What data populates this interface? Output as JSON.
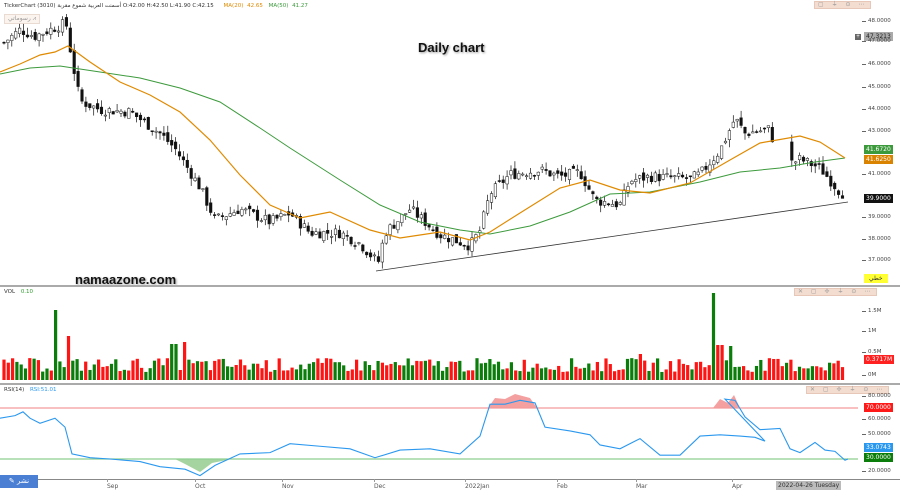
{
  "header": {
    "app": "TickerChart",
    "symbol_name": "أسمنت العربية شموع مقربة",
    "symbol_code": "(3010)",
    "ohlc": "O:42.00  H:42.50  L:41.90  C:42.15",
    "ma20_label": "MA(20)",
    "ma20_value": "42.65",
    "ma50_label": "MA(50)",
    "ma50_value": "41.27",
    "lang_button": "رسوماتي ⩘"
  },
  "overlay": {
    "title": "Daily chart",
    "watermark": "namaazone.com"
  },
  "price_axis": {
    "ticks": [
      "48.0000",
      "47.0000",
      "46.0000",
      "45.0000",
      "44.0000",
      "43.0000",
      "41.0000",
      "39.0000",
      "38.0000",
      "37.0000"
    ],
    "tags": {
      "last_high": "47.3213",
      "ma50": "41.6720",
      "ma20": "41.6250",
      "close": "39.9000",
      "trend_label": "خطي"
    }
  },
  "volume": {
    "label": "VOL",
    "value": "0.10",
    "ticks": [
      "1.5M",
      "1M",
      "0.5M",
      "0M"
    ],
    "current": "0.3717M"
  },
  "rsi": {
    "label": "RSI(14)",
    "value": "RSI:51.01",
    "ticks": [
      "80.0000",
      "60.0000",
      "50.0000",
      "20.0000"
    ],
    "overbought": "70.0000",
    "oversold": "30.0000",
    "current": "33.0743"
  },
  "x_axis": {
    "labels": [
      "Sep",
      "Oct",
      "Nov",
      "Dec",
      "2022Jan",
      "Feb",
      "Mar",
      "Apr"
    ],
    "cursor_date": "2022-04-26 Tuesday",
    "edit_button": "✎ نشر"
  },
  "panel_tools": {
    "main": "▢ ⏚ ⊙ ⋯",
    "sub": "✕ ▢ ✢ ⏚ ⊙ ⋯"
  },
  "colors": {
    "ma20": "#e08a00",
    "ma50": "#3c9a3c",
    "up": "#0a7d0a",
    "down": "#ff1414",
    "rsi": "#2b98ef",
    "ob": "#f08080",
    "os": "#7cc47c"
  },
  "chart_data": [
    {
      "type": "candlestick",
      "title": "Daily chart",
      "series": [
        {
          "name": "MA(20)",
          "values_approx": [
            46.2,
            46.6,
            46.9,
            46.4,
            45.6,
            44.5,
            43.3,
            42.2,
            41.4,
            40.3,
            39.4,
            39.1,
            39.1,
            39.2,
            39.0,
            38.6,
            38.2,
            38.0,
            38.0,
            38.0,
            38.1,
            38.2,
            39.4,
            40.0,
            40.0,
            40.1,
            40.5,
            41.0,
            41.9,
            42.7,
            42.6,
            41.7
          ]
        },
        {
          "name": "MA(50)",
          "values_approx": [
            45.9,
            46.2,
            46.1,
            46.0,
            45.7,
            45.3,
            44.6,
            43.8,
            43.0,
            42.2,
            41.3,
            40.5,
            39.9,
            39.2,
            38.6,
            38.2,
            38.1,
            38.0,
            38.1,
            38.5,
            38.8,
            39.3,
            39.8,
            40.3,
            40.8,
            41.2,
            41.6
          ]
        }
      ],
      "ylim": [
        36.5,
        48.3
      ],
      "annotations": [
        "trendline from Dec low ~36.6 to Apr ~39.6"
      ],
      "last_close": 39.9
    },
    {
      "type": "bar",
      "title": "VOL",
      "ylim": [
        0,
        1.8
      ],
      "ylabel": "M",
      "notable": {
        "sep_spike": 1.25,
        "mar_spike": 1.6,
        "last": 0.3717
      }
    },
    {
      "type": "line",
      "title": "RSI(14)",
      "ylim": [
        15,
        85
      ],
      "bands": [
        30,
        70
      ],
      "current": 33.07,
      "overbought_periods": [
        "Jan 2022",
        "late Mar 2022"
      ],
      "oversold_periods": [
        "early Oct 2021"
      ]
    }
  ]
}
